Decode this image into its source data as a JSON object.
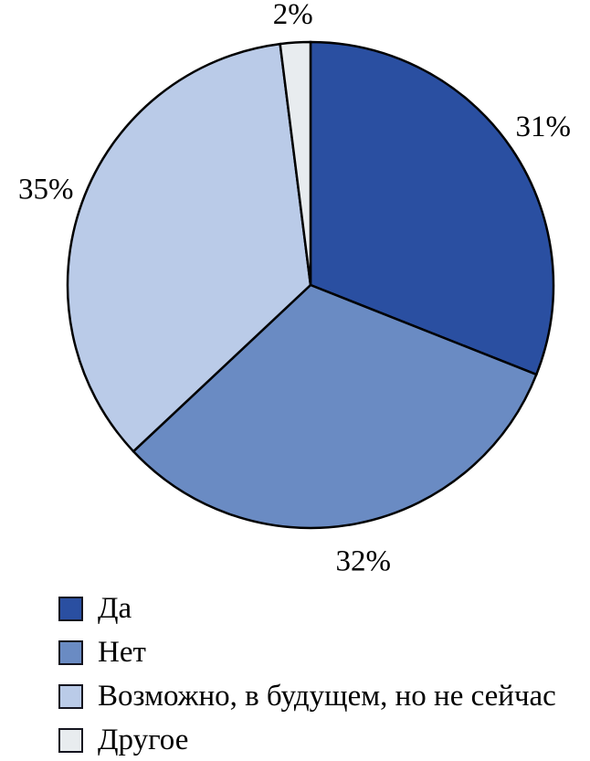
{
  "chart_data": {
    "type": "pie",
    "title": "",
    "categories": [
      "Да",
      "Нет",
      "Возможно, в будущем, но не сейчас",
      "Другое"
    ],
    "values": [
      31,
      32,
      35,
      2
    ],
    "value_labels": [
      "31%",
      "32%",
      "35%",
      "2%"
    ],
    "colors": [
      "#2A4FA1",
      "#6A8BC3",
      "#BACBE8",
      "#E8ECEF"
    ],
    "outline_color": "#000000",
    "text_color": "#000000",
    "background_color": "#FFFFFF",
    "start_angle_deg": 0,
    "direction": "clockwise",
    "legend_position": "bottom-left",
    "labels_outside": true
  }
}
